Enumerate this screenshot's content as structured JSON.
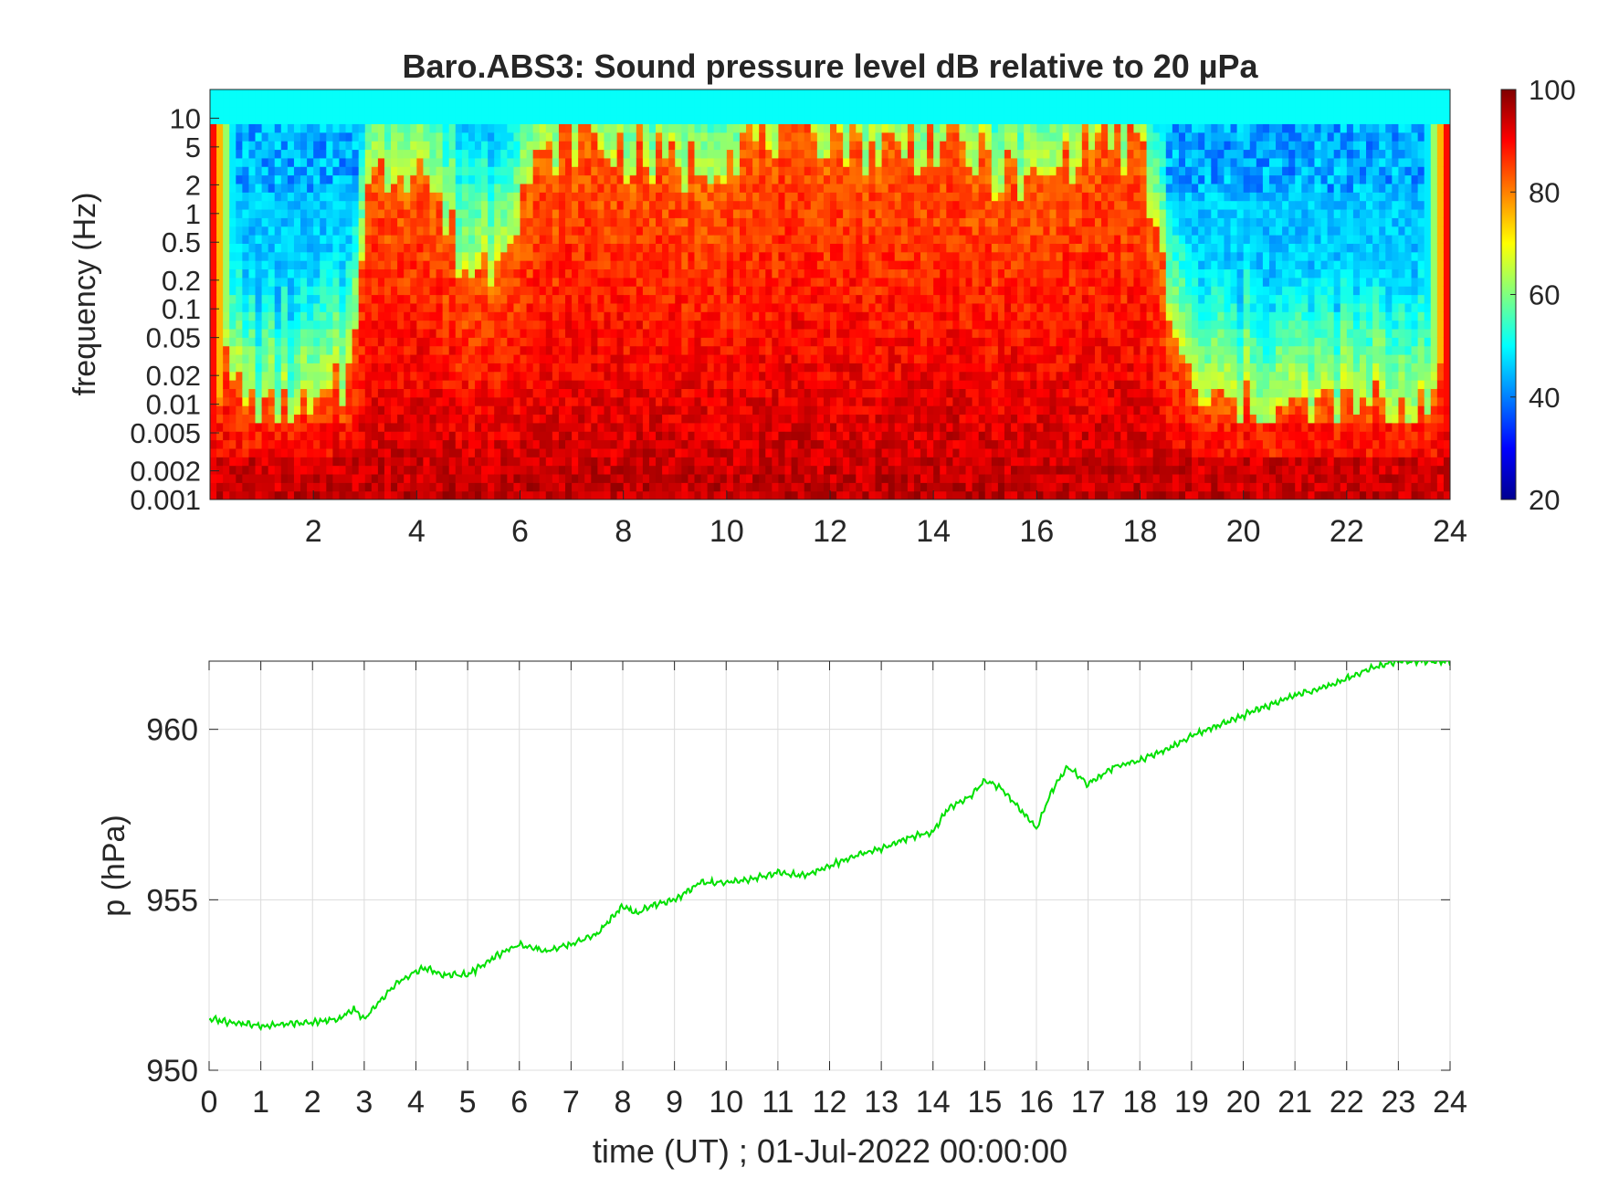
{
  "chart_data": [
    {
      "type": "heatmap",
      "title": "Baro.ABS3: Sound pressure level dB relative to 20 µPa",
      "ylabel": "frequency (Hz)",
      "xlabel": "",
      "xlim": [
        0,
        24
      ],
      "ylim": [
        0.001,
        20
      ],
      "y_scale": "log",
      "x_ticks": [
        "2",
        "4",
        "6",
        "8",
        "10",
        "12",
        "14",
        "16",
        "18",
        "20",
        "22",
        "24"
      ],
      "y_ticks": [
        "0.001",
        "0.002",
        "0.005",
        "0.01",
        "0.02",
        "0.05",
        "0.1",
        "0.2",
        "0.5",
        "1",
        "2",
        "5",
        "10"
      ],
      "y_tick_values": [
        0.001,
        0.002,
        0.005,
        0.01,
        0.02,
        0.05,
        0.1,
        0.2,
        0.5,
        1,
        2,
        5,
        10
      ],
      "colormap": "jet",
      "colorbar": {
        "range": [
          20,
          100
        ],
        "ticks": [
          "20",
          "40",
          "60",
          "80",
          "100"
        ],
        "tick_values": [
          20,
          40,
          60,
          80,
          100
        ]
      },
      "activity_profile": {
        "hours": [
          0,
          1,
          2,
          2.7,
          3,
          4,
          5,
          5.5,
          6,
          7,
          8,
          9,
          10,
          11,
          12,
          13,
          14,
          15,
          16,
          17,
          18,
          18.6,
          19,
          20,
          21,
          22,
          23,
          24
        ],
        "extent": [
          0.35,
          0.2,
          0.2,
          0.3,
          0.75,
          0.85,
          0.55,
          0.6,
          0.75,
          0.9,
          0.85,
          0.8,
          0.85,
          0.9,
          0.9,
          0.85,
          0.88,
          0.82,
          0.75,
          0.9,
          0.85,
          0.45,
          0.25,
          0.22,
          0.22,
          0.22,
          0.22,
          0.3
        ]
      },
      "grid": false
    },
    {
      "type": "line",
      "title": "",
      "xlabel": "time (UT) ; 01-Jul-2022 00:00:00",
      "ylabel": "p (hPa)",
      "xlim": [
        0,
        24
      ],
      "ylim": [
        950,
        962
      ],
      "x_ticks": [
        "0",
        "1",
        "2",
        "3",
        "4",
        "5",
        "6",
        "7",
        "8",
        "9",
        "10",
        "11",
        "12",
        "13",
        "14",
        "15",
        "16",
        "17",
        "18",
        "19",
        "20",
        "21",
        "22",
        "23",
        "24"
      ],
      "y_ticks": [
        "950",
        "955",
        "960"
      ],
      "y_tick_values": [
        950,
        955,
        960
      ],
      "grid": true,
      "series": [
        {
          "color": "#00e000",
          "x": [
            0,
            0.5,
            1,
            1.5,
            2,
            2.5,
            2.8,
            3,
            3.3,
            3.6,
            4,
            4.2,
            4.5,
            5,
            5.5,
            6,
            6.5,
            7,
            7.5,
            8,
            8.3,
            8.5,
            9,
            9.5,
            10,
            10.5,
            11,
            11.5,
            12,
            12.5,
            13,
            13.5,
            14,
            14.3,
            14.7,
            15,
            15.3,
            15.6,
            16,
            16.3,
            16.6,
            17,
            17.5,
            18,
            18.5,
            19,
            19.5,
            20,
            20.5,
            21,
            21.5,
            22,
            22.5,
            23,
            23.5,
            24
          ],
          "y": [
            951.5,
            951.4,
            951.3,
            951.35,
            951.4,
            951.5,
            951.8,
            951.5,
            952.0,
            952.5,
            952.9,
            953.0,
            952.8,
            952.8,
            953.3,
            953.7,
            953.5,
            953.7,
            954.0,
            954.8,
            954.6,
            954.8,
            955.0,
            955.5,
            955.5,
            955.6,
            955.8,
            955.7,
            956.0,
            956.3,
            956.5,
            956.8,
            957.0,
            957.7,
            958.0,
            958.5,
            958.3,
            957.8,
            957.1,
            958.2,
            958.9,
            958.4,
            958.9,
            959.1,
            959.4,
            959.8,
            960.1,
            960.4,
            960.7,
            961.0,
            961.2,
            961.5,
            961.8,
            962.0,
            962.0,
            962.0
          ]
        }
      ]
    }
  ]
}
